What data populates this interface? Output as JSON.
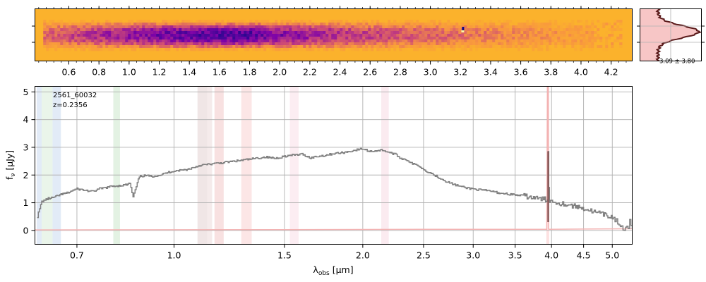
{
  "chart_data": [
    {
      "type": "heatmap",
      "description_role": "2D spectrum",
      "colormap": "plasma",
      "background_color": "#fbb22c",
      "xlim": [
        0.375,
        4.34
      ],
      "tick_labels": [
        "0.6",
        "0.8",
        "1.0",
        "1.2",
        "1.4",
        "1.6",
        "1.8",
        "2.0",
        "2.2",
        "2.4",
        "2.6",
        "2.8",
        "3.0",
        "3.2",
        "3.4",
        "3.6",
        "3.8",
        "4.0",
        "4.2"
      ],
      "tick_values": [
        0.6,
        0.8,
        1.0,
        1.2,
        1.4,
        1.6,
        1.8,
        2.0,
        2.2,
        2.4,
        2.6,
        2.8,
        3.0,
        3.2,
        3.4,
        3.6,
        3.8,
        4.0,
        4.2
      ],
      "trace_center_um": 1.8,
      "trace_extent_um": [
        0.43,
        4.27
      ],
      "hot_pixel_um": 3.21
    },
    {
      "type": "area",
      "description_role": "spatial profile",
      "annotation": "3.09 ± 3.80",
      "fill_color": "#f7c6c6",
      "line_color": "#5a1a1a"
    },
    {
      "type": "line",
      "label_name": "2561_60032",
      "label_z": "z=0.2356",
      "xlabel": "λ_obs [μm]",
      "xlabel_main": "λ",
      "xlabel_sub": "obs",
      "xlabel_unit": " [μm]",
      "ylabel_main": "f",
      "ylabel_sub": "ν",
      "ylabel_unit": " [μJy]",
      "xscale": "log",
      "xlim": [
        0.6,
        5.38
      ],
      "ylim": [
        -0.5,
        5.2
      ],
      "x_tick_labels": [
        "0.7",
        "1.0",
        "1.5",
        "2.0",
        "2.5",
        "3.0",
        "3.5",
        "4.0",
        "4.5",
        "5.0"
      ],
      "x_tick_values": [
        0.7,
        1.0,
        1.5,
        2.0,
        2.5,
        3.0,
        3.5,
        4.0,
        4.5,
        5.0
      ],
      "y_tick_labels": [
        "0",
        "1",
        "2",
        "3",
        "4",
        "5"
      ],
      "y_tick_values": [
        0,
        1,
        2,
        3,
        4,
        5
      ],
      "grid": true,
      "series": [
        {
          "role": "flux",
          "color": "#808080",
          "x": [
            0.605,
            0.615,
            0.63,
            0.645,
            0.66,
            0.675,
            0.69,
            0.7,
            0.72,
            0.74,
            0.76,
            0.78,
            0.8,
            0.82,
            0.84,
            0.85,
            0.86,
            0.88,
            0.9,
            0.92,
            0.95,
            0.98,
            1.0,
            1.05,
            1.1,
            1.15,
            1.2,
            1.25,
            1.3,
            1.35,
            1.4,
            1.45,
            1.5,
            1.55,
            1.6,
            1.65,
            1.7,
            1.75,
            1.8,
            1.85,
            1.9,
            1.95,
            2.0,
            2.05,
            2.1,
            2.15,
            2.2,
            2.25,
            2.3,
            2.35,
            2.4,
            2.45,
            2.5,
            2.55,
            2.6,
            2.65,
            2.7,
            2.75,
            2.8,
            2.85,
            2.9,
            2.95,
            3.0,
            3.1,
            3.2,
            3.3,
            3.4,
            3.5,
            3.6,
            3.7,
            3.8,
            3.9,
            3.94,
            3.95,
            3.96,
            3.97,
            4.0,
            4.1,
            4.2,
            4.3,
            4.4,
            4.5,
            4.6,
            4.7,
            4.8,
            4.9,
            5.0,
            5.05,
            5.1,
            5.15,
            5.2,
            5.25,
            5.3,
            5.33,
            5.38
          ],
          "y": [
            0.5,
            1.05,
            1.15,
            1.2,
            1.3,
            1.35,
            1.45,
            1.5,
            1.45,
            1.4,
            1.5,
            1.55,
            1.6,
            1.62,
            1.65,
            1.7,
            1.2,
            1.95,
            1.98,
            1.95,
            2.0,
            2.1,
            2.15,
            2.2,
            2.35,
            2.4,
            2.45,
            2.5,
            2.55,
            2.6,
            2.65,
            2.6,
            2.68,
            2.72,
            2.75,
            2.62,
            2.68,
            2.72,
            2.78,
            2.8,
            2.85,
            2.9,
            2.95,
            2.85,
            2.88,
            2.9,
            2.82,
            2.75,
            2.6,
            2.55,
            2.4,
            2.35,
            2.2,
            2.1,
            2.0,
            1.9,
            1.8,
            1.72,
            1.65,
            1.6,
            1.55,
            1.52,
            1.5,
            1.45,
            1.42,
            1.35,
            1.32,
            1.28,
            1.25,
            1.2,
            1.15,
            1.12,
            1.1,
            2.85,
            1.5,
            1.1,
            1.05,
            1.0,
            0.95,
            0.9,
            0.85,
            0.8,
            0.72,
            0.65,
            0.6,
            0.52,
            0.48,
            0.4,
            0.28,
            0.15,
            0.05,
            0.08,
            0.05,
            0.32,
            0.05
          ]
        },
        {
          "role": "model",
          "color": "#f3b3b3",
          "x": [
            0.6,
            1.5,
            2.5,
            3.93,
            3.945,
            3.952,
            3.958,
            3.97,
            4.5,
            5.38
          ],
          "y": [
            0.02,
            0.03,
            0.04,
            0.04,
            5.2,
            5.2,
            0.05,
            0.04,
            0.05,
            0.06
          ]
        }
      ],
      "line_peak": {
        "x": 3.952,
        "y": 2.85,
        "color": "#8b5a5a"
      },
      "bands": [
        {
          "x0": 0.604,
          "x1": 0.615,
          "color": "#dbe6f5"
        },
        {
          "x0": 0.64,
          "x1": 0.66,
          "color": "#dbe6f5"
        },
        {
          "x0": 0.615,
          "x1": 0.64,
          "color": "#e5f2e5"
        },
        {
          "x0": 0.8,
          "x1": 0.82,
          "color": "#dcefdc"
        },
        {
          "x0": 1.09,
          "x1": 1.13,
          "color": "#ece0e0"
        },
        {
          "x0": 1.13,
          "x1": 1.15,
          "color": "#f2e6e6"
        },
        {
          "x0": 1.16,
          "x1": 1.2,
          "color": "#f6dada"
        },
        {
          "x0": 1.28,
          "x1": 1.33,
          "color": "#fbe0e0"
        },
        {
          "x0": 1.53,
          "x1": 1.58,
          "color": "#fbe8ef"
        },
        {
          "x0": 2.14,
          "x1": 2.2,
          "color": "#fae6ec"
        },
        {
          "x0": 3.925,
          "x1": 3.965,
          "color": "#fcd9d9"
        }
      ]
    }
  ]
}
